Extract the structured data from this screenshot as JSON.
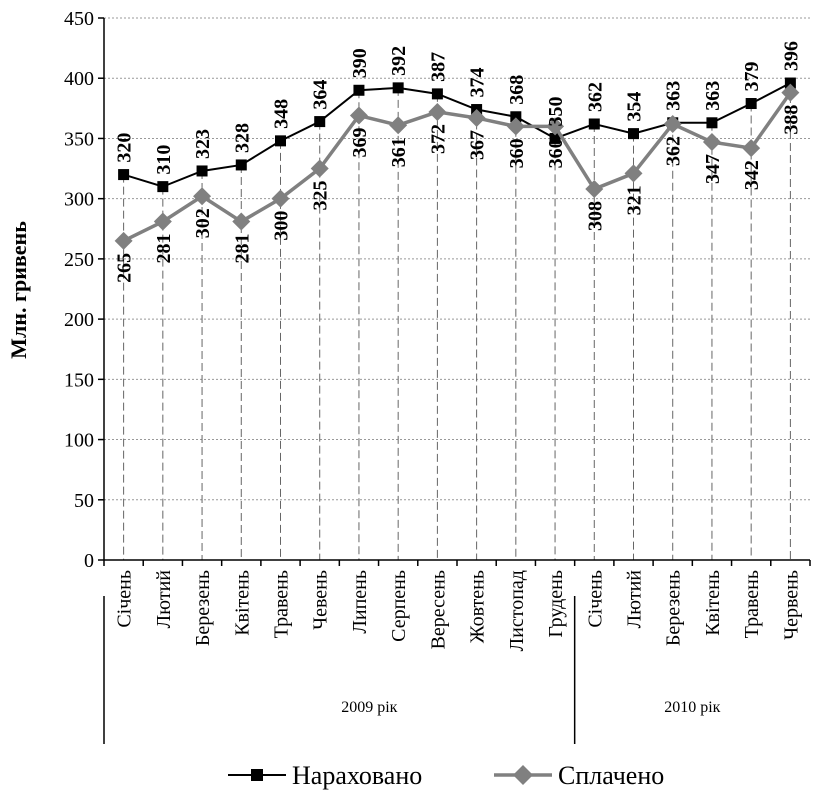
{
  "chart_data": {
    "type": "line",
    "ylabel": "Млн. гривень",
    "ylim": [
      0,
      450
    ],
    "ytick_step": 50,
    "grid": true,
    "legend_position": "bottom",
    "categories": [
      "Січень",
      "Лютий",
      "Березень",
      "Квітень",
      "Травень",
      "Чевень",
      "Липень",
      "Серпень",
      "Вересень",
      "Жовтень",
      "Листопад",
      "Грудень",
      "Січень",
      "Лютий",
      "Березень",
      "Квітень",
      "Травень",
      "Червень"
    ],
    "category_groups": [
      {
        "label": "2009 рік",
        "count": 12
      },
      {
        "label": "2010 рік",
        "count": 6
      }
    ],
    "series": [
      {
        "name": "Нараховано",
        "color": "#000000",
        "marker": "square",
        "values": [
          320,
          310,
          323,
          328,
          348,
          364,
          390,
          392,
          387,
          374,
          368,
          350,
          362,
          354,
          363,
          363,
          379,
          396
        ]
      },
      {
        "name": "Сплачено",
        "color": "#808080",
        "marker": "diamond",
        "values": [
          265,
          281,
          302,
          281,
          300,
          325,
          369,
          361,
          372,
          367,
          360,
          360,
          308,
          321,
          362,
          347,
          342,
          388
        ]
      }
    ]
  }
}
